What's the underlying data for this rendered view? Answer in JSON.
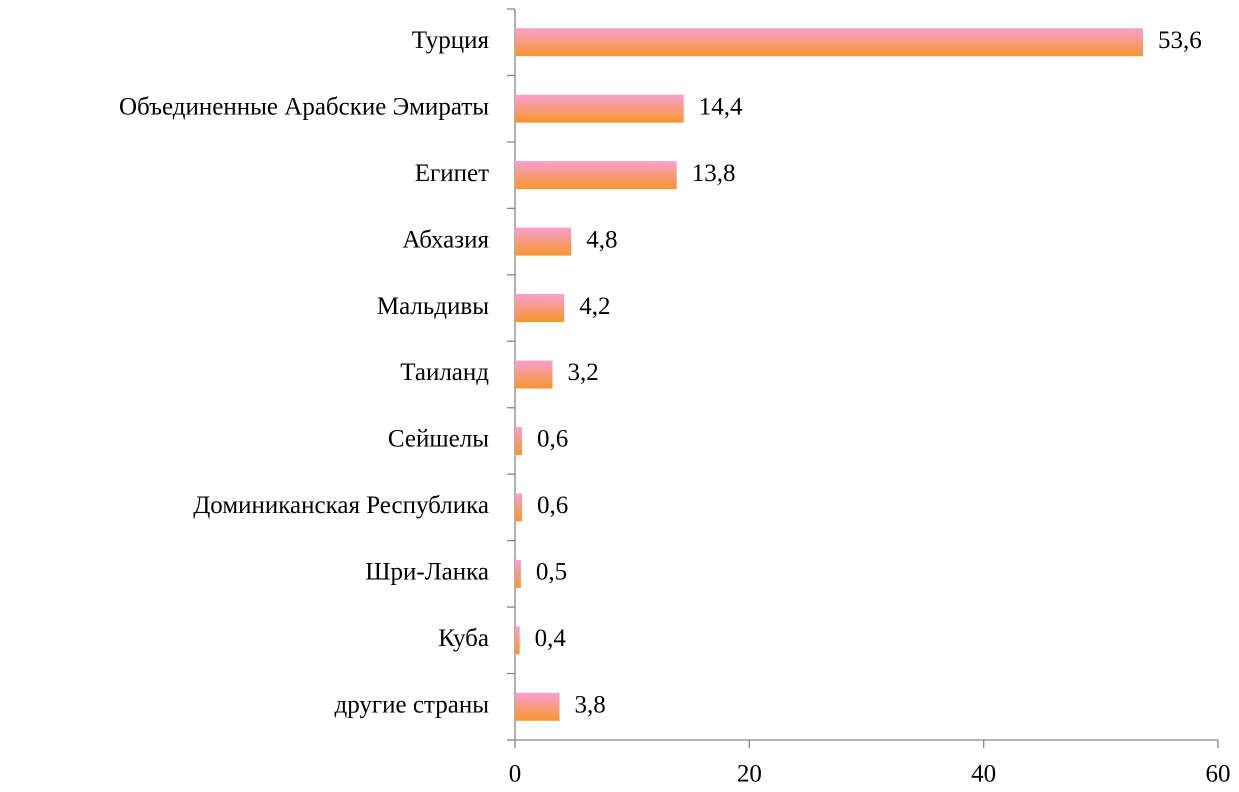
{
  "chart_data": {
    "type": "barh",
    "categories": [
      "Турция",
      "Объединенные Арабские Эмираты",
      "Египет",
      "Абхазия",
      "Мальдивы",
      "Таиланд",
      "Сейшелы",
      "Доминиканская Республика",
      "Шри-Ланка",
      "Куба",
      "другие страны"
    ],
    "values": [
      53.6,
      14.4,
      13.8,
      4.8,
      4.2,
      3.2,
      0.6,
      0.6,
      0.5,
      0.4,
      3.8
    ],
    "value_labels": [
      "53,6",
      "14,4",
      "13,8",
      "4,8",
      "4,2",
      "3,2",
      "0,6",
      "0,6",
      "0,5",
      "0,4",
      "3,8"
    ],
    "colors": [
      "#f99fd0",
      "#f7962c"
    ],
    "xlim": [
      0,
      60
    ],
    "xticks": [
      0,
      20,
      40,
      60
    ]
  }
}
